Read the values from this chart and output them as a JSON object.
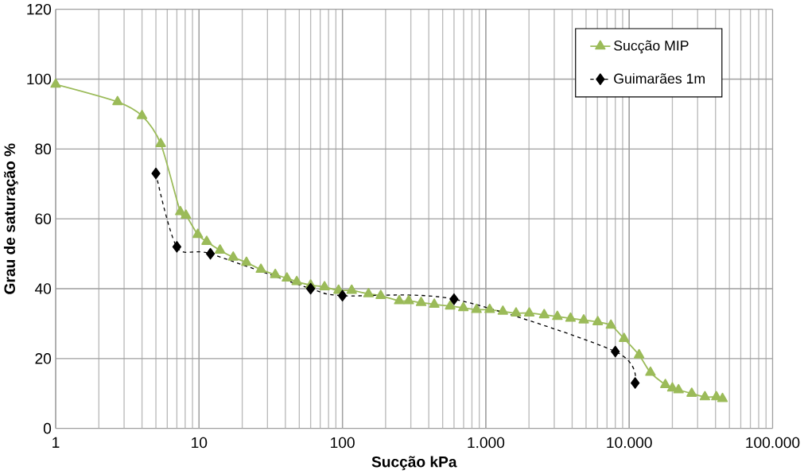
{
  "chart_data": {
    "type": "line",
    "xlabel": "Sucção kPa",
    "ylabel": "Grau de saturação %",
    "log": "x",
    "xlim": [
      1,
      100000
    ],
    "ylim": [
      0,
      120
    ],
    "xticks": [
      1,
      10,
      100,
      {
        "value": 1000,
        "label": "1.000"
      },
      {
        "value": 10000,
        "label": "10.000"
      },
      {
        "value": 100000,
        "label": "100.000"
      }
    ],
    "yticks": [
      0,
      20,
      40,
      60,
      80,
      100,
      120
    ],
    "grid": true,
    "legend": "top right",
    "series": [
      {
        "name": "Sucção MIP",
        "color": "#9bbb59",
        "marker": "triangle",
        "line_style": "solid",
        "x": [
          1,
          2.7,
          4.0,
          5.4,
          7.4,
          8.1,
          9.8,
          11.3,
          14,
          17.3,
          21.4,
          27,
          34,
          41,
          48,
          60,
          75,
          94,
          116,
          152,
          185,
          249,
          290,
          354,
          437,
          564,
          697,
          861,
          1064,
          1315,
          1625,
          2009,
          2553,
          3155,
          3899,
          4818,
          6036,
          7458,
          9205,
          11720,
          14070,
          17870,
          20000,
          22080,
          27290,
          33730,
          40550,
          44740
        ],
        "values": [
          98.5,
          93.5,
          89.5,
          81.5,
          62,
          61,
          55.5,
          53.5,
          51,
          49,
          47.5,
          45.5,
          44,
          43,
          42,
          41,
          40.5,
          39.5,
          39.5,
          38.5,
          38,
          36.5,
          36.5,
          36,
          35.5,
          35,
          34.5,
          34,
          34,
          33.5,
          33,
          33,
          32.5,
          32,
          31.5,
          31,
          30.5,
          29.5,
          25.7,
          21,
          16,
          12.5,
          11.5,
          11,
          10,
          9,
          9,
          8.5
        ]
      },
      {
        "name": "Guimarães 1m",
        "color": "#000000",
        "marker": "diamond",
        "line_style": "dashed",
        "x": [
          5,
          7,
          12,
          60,
          100,
          600,
          8000,
          11000
        ],
        "values": [
          73,
          52,
          50,
          40,
          38,
          37,
          22,
          13
        ]
      }
    ]
  }
}
